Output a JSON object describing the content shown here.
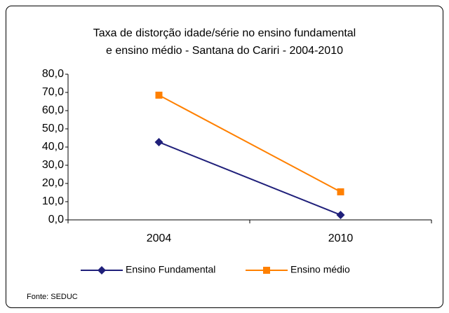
{
  "chart_data": {
    "type": "line",
    "title": [
      "Taxa de distorção idade/série no ensino fundamental",
      "e ensino médio - Santana do Cariri -  2004-2010"
    ],
    "categories": [
      "2004",
      "2010"
    ],
    "series": [
      {
        "name": "Ensino Fundamental",
        "color": "#1f1f7a",
        "marker": "diamond",
        "values": [
          42.7,
          2.7
        ]
      },
      {
        "name": "Ensino médio",
        "color": "#ff8000",
        "marker": "square",
        "values": [
          68.5,
          15.4
        ]
      }
    ],
    "ylim": [
      0,
      80
    ],
    "yticks": [
      {
        "value": 0,
        "label": "0,0"
      },
      {
        "value": 10,
        "label": "10,0"
      },
      {
        "value": 20,
        "label": "20,0"
      },
      {
        "value": 30,
        "label": "30,0"
      },
      {
        "value": 40,
        "label": "40,0"
      },
      {
        "value": 50,
        "label": "50,0"
      },
      {
        "value": 60,
        "label": "60,0"
      },
      {
        "value": 70,
        "label": "70,0"
      },
      {
        "value": 80,
        "label": "80,0"
      }
    ],
    "grid": false,
    "legend": "bottom",
    "source": "Fonte: SEDUC"
  }
}
